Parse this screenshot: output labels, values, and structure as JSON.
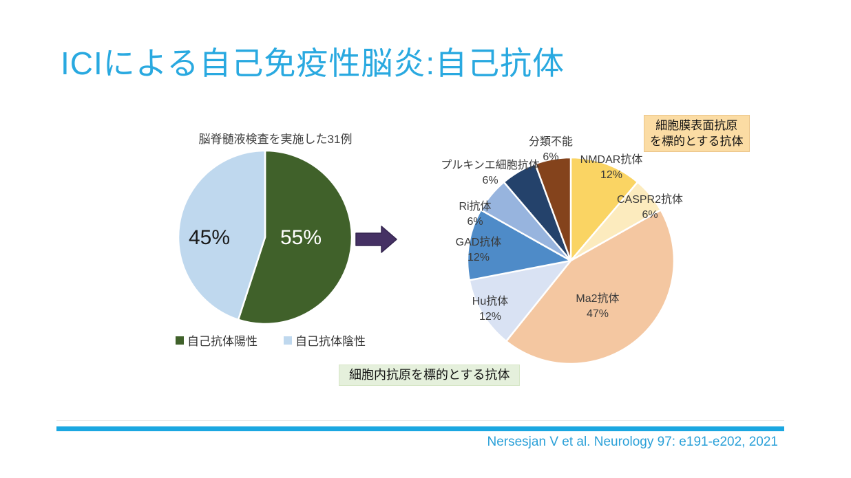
{
  "header": {
    "title": "ICIによる自己免疫性脳炎:自己抗体"
  },
  "chart_data": [
    {
      "type": "pie",
      "name": "csf-tested-pie",
      "title": "脳脊髄液検査を実施した31例",
      "start_angle": "top",
      "direction": "clockwise",
      "legend_position": "bottom",
      "slices": [
        {
          "label": "自己抗体陽性",
          "value": 55,
          "pct_label": "55%",
          "color": "#40612A"
        },
        {
          "label": "自己抗体陰性",
          "value": 45,
          "pct_label": "45%",
          "color": "#BFD8EE"
        }
      ]
    },
    {
      "type": "pie",
      "name": "autoantibody-types-pie",
      "title": "",
      "start_angle": "top",
      "direction": "clockwise",
      "legend_position": "none",
      "slices": [
        {
          "label": "NMDAR抗体",
          "value": 12,
          "pct_label": "12%",
          "color": "#FAD463"
        },
        {
          "label": "CASPR2抗体",
          "value": 6,
          "pct_label": "6%",
          "color": "#FCEBBE"
        },
        {
          "label": "Ma2抗体",
          "value": 47,
          "pct_label": "47%",
          "color": "#F4C7A1"
        },
        {
          "label": "Hu抗体",
          "value": 12,
          "pct_label": "12%",
          "color": "#D9E2F3"
        },
        {
          "label": "GAD抗体",
          "value": 12,
          "pct_label": "12%",
          "color": "#4E8BC8"
        },
        {
          "label": "Ri抗体",
          "value": 6,
          "pct_label": "6%",
          "color": "#97B4DE"
        },
        {
          "label": "プルキンエ細胞抗体",
          "value": 6,
          "pct_label": "6%",
          "color": "#24426B"
        },
        {
          "label": "分類不能",
          "value": 6,
          "pct_label": "6%",
          "color": "#84431C"
        }
      ]
    }
  ],
  "annotations": {
    "surface_box": {
      "line1": "細胞膜表面抗原",
      "line2": "を標的とする抗体"
    },
    "intracellular_box": {
      "text": "細胞内抗原を標的とする抗体"
    },
    "arrow": {
      "color": "#453164",
      "outline": "#352650"
    }
  },
  "footer": {
    "citation": "Nersesjan V et al. Neurology 97: e191-e202, 2021",
    "bar_color": "#1BA7E1"
  }
}
